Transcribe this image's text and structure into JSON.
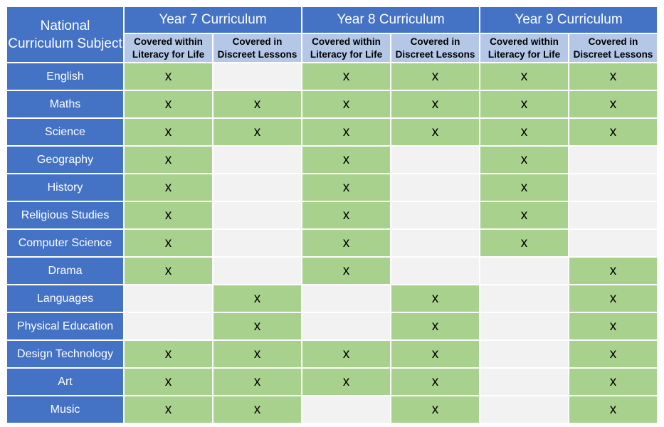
{
  "header": {
    "subject_label": "National Curriculum Subject",
    "years": [
      {
        "label": "Year 7 Curriculum"
      },
      {
        "label": "Year 8 Curriculum"
      },
      {
        "label": "Year 9 Curriculum"
      }
    ],
    "sub_columns": [
      "Covered within Literacy for Life",
      "Covered in Discreet Lessons"
    ]
  },
  "mark_symbol": "x",
  "colors": {
    "header_blue": "#4472c4",
    "subheader_blue": "#b4c7e7",
    "covered_green": "#a9d18e",
    "not_covered_grey": "#f2f2f2"
  },
  "rows": [
    {
      "subject": "English",
      "coverage": [
        true,
        false,
        true,
        true,
        true,
        true
      ]
    },
    {
      "subject": "Maths",
      "coverage": [
        true,
        true,
        true,
        true,
        true,
        true
      ]
    },
    {
      "subject": "Science",
      "coverage": [
        true,
        true,
        true,
        true,
        true,
        true
      ]
    },
    {
      "subject": "Geography",
      "coverage": [
        true,
        false,
        true,
        false,
        true,
        false
      ]
    },
    {
      "subject": "History",
      "coverage": [
        true,
        false,
        true,
        false,
        true,
        false
      ]
    },
    {
      "subject": "Religious Studies",
      "coverage": [
        true,
        false,
        true,
        false,
        true,
        false
      ]
    },
    {
      "subject": "Computer Science",
      "coverage": [
        true,
        false,
        true,
        false,
        true,
        false
      ]
    },
    {
      "subject": "Drama",
      "coverage": [
        true,
        false,
        true,
        false,
        false,
        true
      ]
    },
    {
      "subject": "Languages",
      "coverage": [
        false,
        true,
        false,
        true,
        false,
        true
      ]
    },
    {
      "subject": "Physical Education",
      "coverage": [
        false,
        true,
        false,
        true,
        false,
        true
      ]
    },
    {
      "subject": "Design Technology",
      "coverage": [
        true,
        true,
        true,
        true,
        false,
        true
      ]
    },
    {
      "subject": "Art",
      "coverage": [
        true,
        true,
        true,
        true,
        false,
        true
      ]
    },
    {
      "subject": "Music",
      "coverage": [
        true,
        true,
        false,
        true,
        false,
        true
      ]
    }
  ]
}
